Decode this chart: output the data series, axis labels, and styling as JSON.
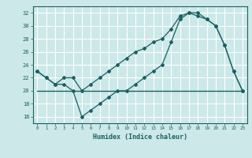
{
  "title": "",
  "xlabel": "Humidex (Indice chaleur)",
  "background_color": "#cce8e8",
  "grid_color": "#ffffff",
  "line_color": "#1a6060",
  "xlim": [
    -0.5,
    23.5
  ],
  "ylim": [
    15.0,
    33.0
  ],
  "yticks": [
    16,
    18,
    20,
    22,
    24,
    26,
    28,
    30,
    32
  ],
  "xticks": [
    0,
    1,
    2,
    3,
    4,
    5,
    6,
    7,
    8,
    9,
    10,
    11,
    12,
    13,
    14,
    15,
    16,
    17,
    18,
    19,
    20,
    21,
    22,
    23
  ],
  "line1_x": [
    0,
    1,
    2,
    3,
    4,
    5,
    6,
    7,
    8,
    9,
    10,
    11,
    12,
    13,
    14,
    15,
    16,
    17,
    18,
    19,
    20,
    21,
    22,
    23
  ],
  "line1_y": [
    23,
    22,
    21,
    21,
    20,
    16,
    17,
    18,
    19,
    20,
    20,
    21,
    22,
    23,
    24,
    27.5,
    31,
    32,
    32,
    31,
    30,
    27,
    23,
    20
  ],
  "line2_x": [
    0,
    1,
    2,
    3,
    4,
    5,
    6,
    7,
    8,
    9,
    10,
    11,
    12,
    13,
    14,
    15,
    16,
    17,
    18,
    19,
    20,
    21,
    22,
    23
  ],
  "line2_y": [
    23,
    22,
    21,
    22,
    22,
    20,
    21,
    22,
    23,
    24,
    25,
    26,
    26.5,
    27.5,
    28,
    29.5,
    31.5,
    32,
    31.5,
    31,
    30,
    27,
    23,
    20
  ],
  "line3_x": [
    0,
    23
  ],
  "line3_y": [
    20,
    20
  ]
}
